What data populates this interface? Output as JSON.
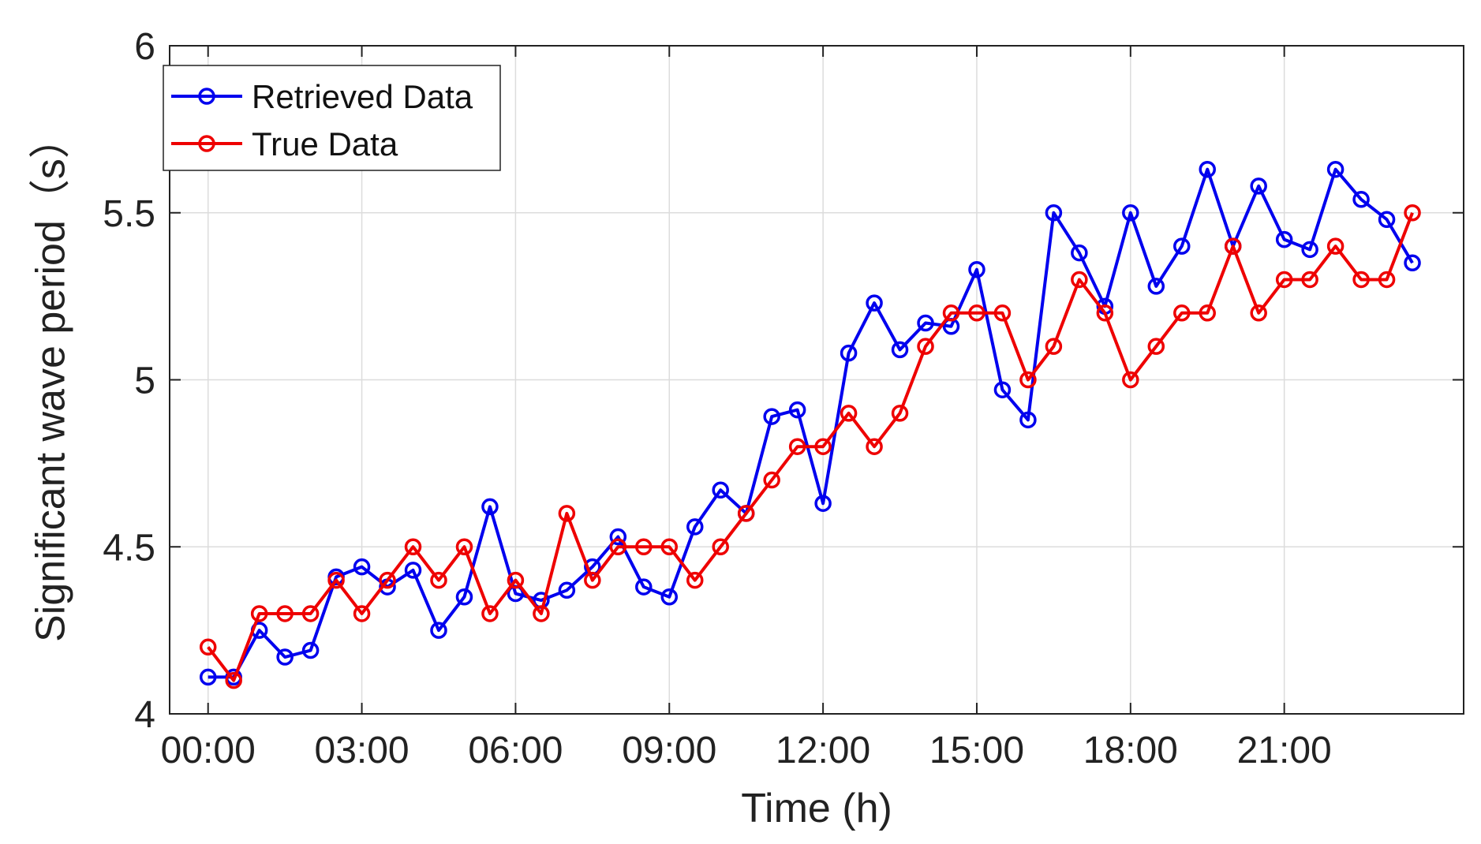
{
  "chart_data": {
    "type": "line",
    "title": "",
    "xlabel": "Time (h)",
    "ylabel": "Significant wave period（s）",
    "ylim": [
      4,
      6
    ],
    "xlim": [
      -0.75,
      24.5
    ],
    "grid": true,
    "legend_position": "top-left",
    "x_ticks": [
      0,
      3,
      6,
      9,
      12,
      15,
      18,
      21
    ],
    "x_tick_labels": [
      "00:00",
      "03:00",
      "06:00",
      "09:00",
      "12:00",
      "15:00",
      "18:00",
      "21:00"
    ],
    "y_ticks": [
      4,
      4.5,
      5,
      5.5,
      6
    ],
    "y_tick_labels": [
      "4",
      "4.5",
      "5",
      "5.5",
      "6"
    ],
    "x": [
      0,
      0.5,
      1,
      1.5,
      2,
      2.5,
      3,
      3.5,
      4,
      4.5,
      5,
      5.5,
      6,
      6.5,
      7,
      7.5,
      8,
      8.5,
      9,
      9.5,
      10,
      10.5,
      11,
      11.5,
      12,
      12.5,
      13,
      13.5,
      14,
      14.5,
      15,
      15.5,
      16,
      16.5,
      17,
      17.5,
      18,
      18.5,
      19,
      19.5,
      20,
      20.5,
      21,
      21.5,
      22,
      22.5,
      23,
      23.5
    ],
    "series": [
      {
        "name": "Retrieved Data",
        "color": "#0000ee",
        "values": [
          4.11,
          4.11,
          4.25,
          4.17,
          4.19,
          4.41,
          4.44,
          4.38,
          4.43,
          4.25,
          4.35,
          4.62,
          4.36,
          4.34,
          4.37,
          4.44,
          4.53,
          4.38,
          4.35,
          4.56,
          4.67,
          4.6,
          4.89,
          4.91,
          4.63,
          5.08,
          5.23,
          5.09,
          5.17,
          5.16,
          5.33,
          4.97,
          4.88,
          5.5,
          5.38,
          5.22,
          5.5,
          5.28,
          5.4,
          5.63,
          5.4,
          5.58,
          5.42,
          5.39,
          5.63,
          5.54,
          5.48,
          5.35
        ]
      },
      {
        "name": "True Data",
        "color": "#ee0000",
        "values": [
          4.2,
          4.1,
          4.3,
          4.3,
          4.3,
          4.4,
          4.3,
          4.4,
          4.5,
          4.4,
          4.5,
          4.3,
          4.4,
          4.3,
          4.6,
          4.4,
          4.5,
          4.5,
          4.5,
          4.4,
          4.5,
          4.6,
          4.7,
          4.8,
          4.8,
          4.9,
          4.8,
          4.9,
          5.1,
          5.2,
          5.2,
          5.2,
          5.0,
          5.1,
          5.3,
          5.2,
          5.0,
          5.1,
          5.2,
          5.2,
          5.4,
          5.2,
          5.3,
          5.3,
          5.4,
          5.3,
          5.3,
          5.5
        ]
      }
    ]
  }
}
